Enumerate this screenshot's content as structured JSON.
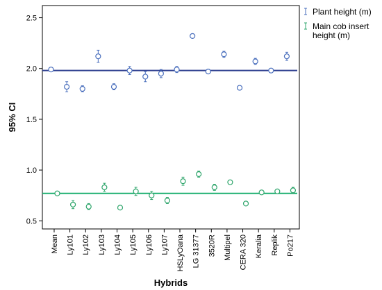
{
  "chart_data": {
    "type": "scatter",
    "title": "",
    "xlabel": "Hybrids",
    "ylabel": "95% CI",
    "ylim": [
      0.42,
      2.62
    ],
    "yticks": [
      0.5,
      1.0,
      1.5,
      2.0,
      2.5
    ],
    "ytick_labels": [
      "0.5",
      "1.0",
      "1.5",
      "2.0",
      "2.5"
    ],
    "grid": false,
    "legend_position": "top-right outside",
    "categories": [
      "Mean",
      "Ly101",
      "Ly102",
      "Ly103",
      "Ly104",
      "Ly105",
      "Ly106",
      "Ly107",
      "HSLyOana",
      "LG 31377",
      "3520R",
      "Multipel",
      "CERA 320",
      "Keralia",
      "Replik",
      "Po217"
    ],
    "series": [
      {
        "name": "Plant height (m)",
        "color": "#4a6fbd",
        "mean_line": 1.98,
        "line_color": "#2e3f8f",
        "values": [
          1.99,
          1.82,
          1.8,
          2.12,
          1.82,
          1.98,
          1.92,
          1.95,
          1.99,
          2.32,
          1.97,
          2.14,
          1.81,
          2.07,
          1.98,
          2.12
        ],
        "ci": [
          0.01,
          0.05,
          0.03,
          0.06,
          0.03,
          0.04,
          0.05,
          0.04,
          0.03,
          0.02,
          0.01,
          0.03,
          0.02,
          0.03,
          0.01,
          0.04
        ]
      },
      {
        "name": "Main cob insert height (m)",
        "color": "#2ea56b",
        "mean_line": 0.77,
        "line_color": "#1db070",
        "values": [
          0.77,
          0.66,
          0.64,
          0.83,
          0.63,
          0.79,
          0.75,
          0.7,
          0.89,
          0.96,
          0.83,
          0.88,
          0.67,
          0.78,
          0.79,
          0.8
        ],
        "ci": [
          0.01,
          0.04,
          0.03,
          0.04,
          0.02,
          0.04,
          0.04,
          0.03,
          0.04,
          0.03,
          0.03,
          0.02,
          0.02,
          0.02,
          0.02,
          0.03
        ]
      }
    ]
  }
}
